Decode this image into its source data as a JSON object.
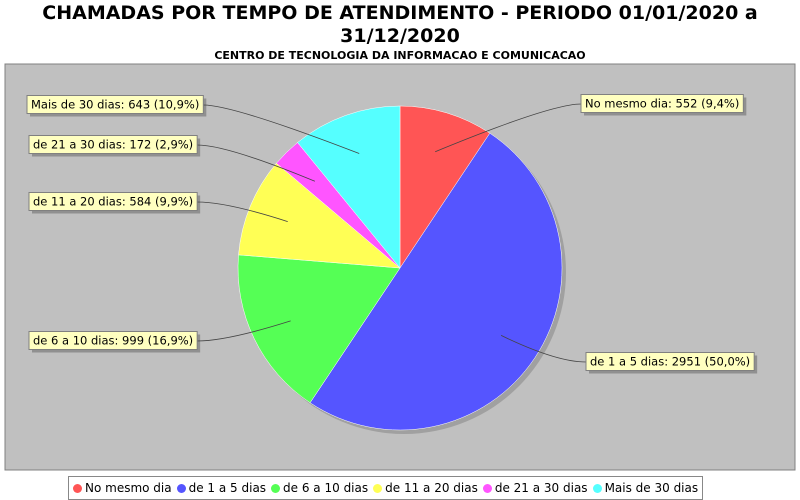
{
  "chart_data": {
    "type": "pie",
    "title": "CHAMADAS POR TEMPO DE ATENDIMENTO - PERIODO 01/01/2020 a 31/12/2020",
    "subtitle": "CENTRO DE TECNOLOGIA DA INFORMACAO E COMUNICACAO",
    "categories": [
      "No mesmo dia",
      "de 1 a 5 dias",
      "de 6 a 10 dias",
      "de 11 a 20 dias",
      "de 21 a 30 dias",
      "Mais de 30 dias"
    ],
    "values": [
      552,
      2951,
      999,
      584,
      172,
      643
    ],
    "value_labels": [
      "No mesmo dia: 552 (9,4%)",
      "de 1 a 5 dias: 2951 (50,0%)",
      "de 6 a 10 dias: 999 (16,9%)",
      "de 11 a 20 dias: 584 (9,9%)",
      "de 21 a 30 dias: 172 (2,9%)",
      "Mais de 30 dias: 643 (10,9%)"
    ],
    "colors": [
      "#ff5555",
      "#5555ff",
      "#55ff55",
      "#ffff55",
      "#ff55ff",
      "#55ffff"
    ]
  }
}
